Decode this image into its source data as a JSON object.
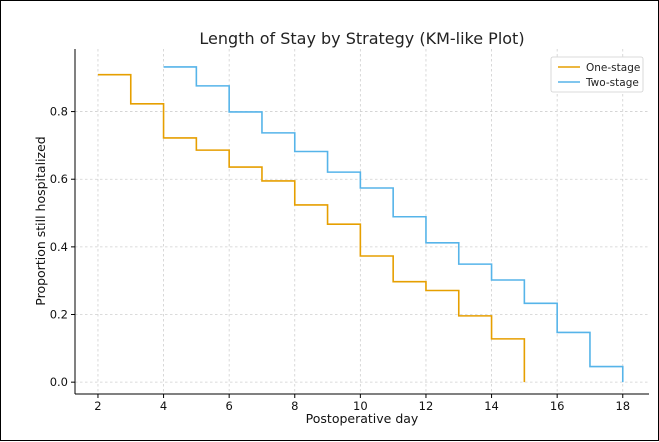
{
  "chart_data": {
    "type": "line",
    "step": "post",
    "title": "Length of Stay by Strategy (KM-like Plot)",
    "xlabel": "Postoperative day",
    "ylabel": "Proportion still hospitalized",
    "xlim": [
      1.3,
      18.8
    ],
    "ylim": [
      -0.035,
      0.985
    ],
    "xticks": [
      2,
      4,
      6,
      8,
      10,
      12,
      14,
      16,
      18
    ],
    "yticks": [
      0.0,
      0.2,
      0.4,
      0.6,
      0.8
    ],
    "ytick_labels": [
      "0.0",
      "0.2",
      "0.4",
      "0.6",
      "0.8"
    ],
    "grid": true,
    "legend_position": "top-right",
    "series": [
      {
        "name": "One-stage",
        "color": "#E69F00",
        "x": [
          2,
          3,
          4,
          5,
          6,
          7,
          8,
          9,
          10,
          11,
          12,
          13,
          14,
          15,
          15
        ],
        "y": [
          0.909,
          0.823,
          0.722,
          0.686,
          0.636,
          0.595,
          0.524,
          0.467,
          0.373,
          0.297,
          0.271,
          0.196,
          0.128,
          0.128,
          0.0
        ]
      },
      {
        "name": "Two-stage",
        "color": "#56B4E9",
        "x": [
          4,
          5,
          6,
          7,
          8,
          9,
          10,
          11,
          12,
          13,
          14,
          15,
          16,
          17,
          18,
          18
        ],
        "y": [
          0.932,
          0.876,
          0.799,
          0.737,
          0.682,
          0.621,
          0.574,
          0.489,
          0.412,
          0.349,
          0.302,
          0.233,
          0.147,
          0.046,
          0.046,
          0.0
        ]
      }
    ]
  }
}
